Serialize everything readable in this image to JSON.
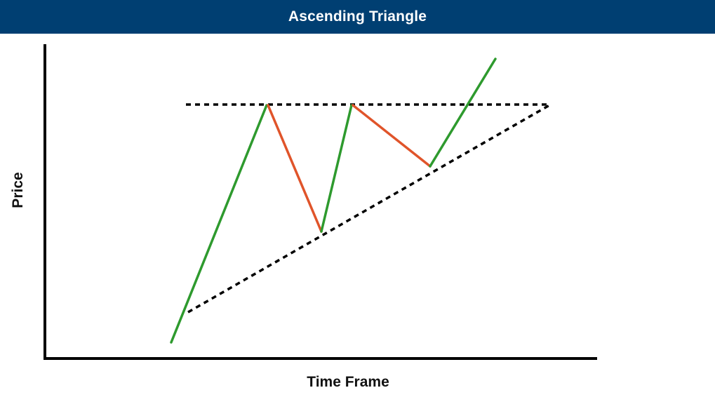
{
  "header": {
    "title": "Ascending Triangle",
    "background_color": "#003f72",
    "text_color": "#ffffff"
  },
  "axes": {
    "y_label": "Price",
    "x_label": "Time Frame",
    "color": "#000000"
  },
  "diagram": {
    "pattern": "ascending-triangle",
    "colors": {
      "rising_leg": "#2e9a2e",
      "falling_leg": "#e0542a",
      "trendline": "#000000"
    },
    "trendlines": [
      {
        "name": "resistance-line",
        "style": "dotted"
      },
      {
        "name": "support-line",
        "style": "dotted"
      }
    ],
    "price_path": [
      {
        "name": "leg-up-1",
        "direction": "up"
      },
      {
        "name": "leg-down-1",
        "direction": "down"
      },
      {
        "name": "leg-up-2",
        "direction": "up"
      },
      {
        "name": "leg-down-2",
        "direction": "down"
      },
      {
        "name": "breakout-leg",
        "direction": "up"
      }
    ]
  }
}
